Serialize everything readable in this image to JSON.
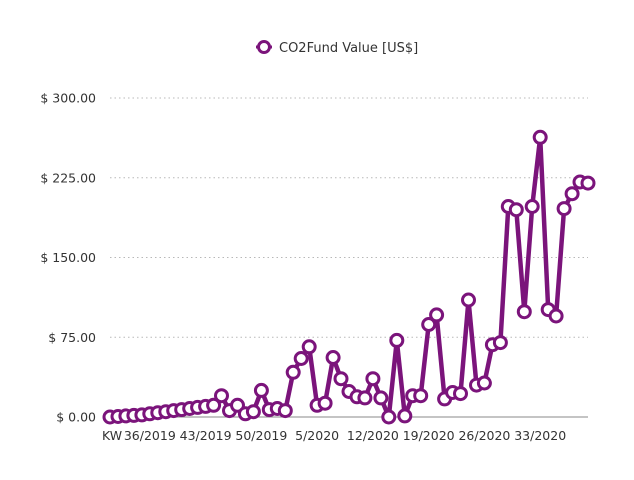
{
  "chart_data": {
    "type": "line",
    "legend": {
      "label": "CO2Fund Value [US$]",
      "position": "top"
    },
    "x_tick_labels": [
      {
        "index": 0,
        "label": "KW"
      },
      {
        "index": 5,
        "label": "36/2019"
      },
      {
        "index": 12,
        "label": "43/2019"
      },
      {
        "index": 19,
        "label": "50/2019"
      },
      {
        "index": 26,
        "label": "5/2020"
      },
      {
        "index": 33,
        "label": "12/2020"
      },
      {
        "index": 40,
        "label": "19/2020"
      },
      {
        "index": 47,
        "label": "26/2020"
      },
      {
        "index": 54,
        "label": "33/2020"
      }
    ],
    "y_ticks": [
      {
        "value": 0,
        "label": "$ 0.00"
      },
      {
        "value": 75,
        "label": "$ 75.00"
      },
      {
        "value": 150,
        "label": "$ 150.00"
      },
      {
        "value": 225,
        "label": "$ 225.00"
      },
      {
        "value": 300,
        "label": "$ 300.00"
      }
    ],
    "ylim": [
      0,
      300
    ],
    "grid": true,
    "colors": {
      "series": "#7b147b",
      "marker_fill": "#ffffff",
      "grid": "#b8b8b8"
    },
    "series": [
      {
        "name": "CO2Fund Value [US$]",
        "values": [
          0,
          0.5,
          1,
          1.5,
          2,
          3,
          4,
          5,
          6,
          7,
          8,
          9,
          10,
          11,
          20,
          6,
          11,
          3,
          5,
          25,
          7,
          8,
          6,
          42,
          55,
          66,
          11,
          13,
          56,
          36,
          24,
          19,
          18,
          36,
          18,
          0,
          72,
          1,
          20,
          20,
          87,
          96,
          17,
          23,
          22,
          110,
          30,
          32,
          68,
          70,
          198,
          195,
          99,
          198,
          263,
          101,
          95,
          196,
          210,
          221,
          220
        ]
      }
    ]
  }
}
